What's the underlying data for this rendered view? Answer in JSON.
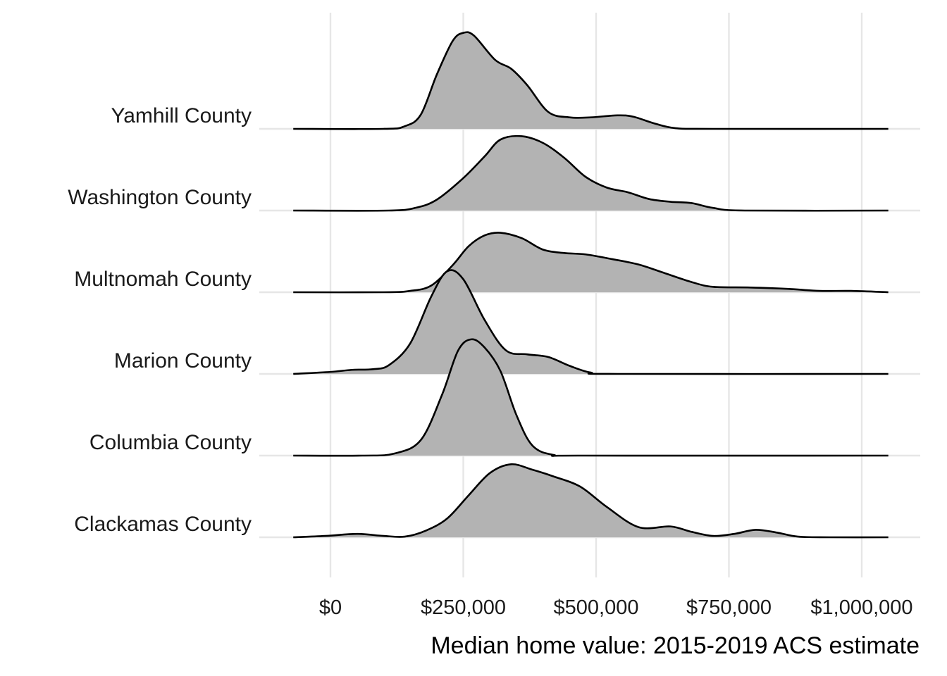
{
  "chart_data": {
    "type": "ridgeline",
    "title": "",
    "xlabel": "Median home value: 2015-2019 ACS estimate",
    "ylabel": "",
    "xlim": [
      -70000,
      1060000
    ],
    "x_ticks": [
      0,
      250000,
      500000,
      750000,
      1000000
    ],
    "x_tick_labels": [
      "$0",
      "$250,000",
      "$500,000",
      "$750,000",
      "$1,000,000"
    ],
    "grid": true,
    "fill_color": "#b3b3b3",
    "line_color": "#000000",
    "categories": [
      "Clackamas County",
      "Columbia County",
      "Marion County",
      "Multnomah County",
      "Washington County",
      "Yamhill County"
    ],
    "series": [
      {
        "name": "Clackamas County",
        "points": [
          [
            -70000,
            0
          ],
          [
            -10000,
            0.02
          ],
          [
            50000,
            0.05
          ],
          [
            100000,
            0.02
          ],
          [
            140000,
            0.01
          ],
          [
            180000,
            0.1
          ],
          [
            220000,
            0.28
          ],
          [
            260000,
            0.62
          ],
          [
            300000,
            0.95
          ],
          [
            340000,
            1.08
          ],
          [
            380000,
            1.0
          ],
          [
            420000,
            0.9
          ],
          [
            470000,
            0.75
          ],
          [
            520000,
            0.45
          ],
          [
            580000,
            0.15
          ],
          [
            640000,
            0.16
          ],
          [
            680000,
            0.08
          ],
          [
            720000,
            0.02
          ],
          [
            760000,
            0.05
          ],
          [
            800000,
            0.11
          ],
          [
            840000,
            0.07
          ],
          [
            880000,
            0.01
          ],
          [
            940000,
            0
          ],
          [
            1050000,
            0
          ]
        ]
      },
      {
        "name": "Columbia County",
        "points": [
          [
            -70000,
            0
          ],
          [
            60000,
            0
          ],
          [
            120000,
            0.03
          ],
          [
            170000,
            0.23
          ],
          [
            210000,
            0.9
          ],
          [
            240000,
            1.55
          ],
          [
            265000,
            1.72
          ],
          [
            290000,
            1.6
          ],
          [
            320000,
            1.25
          ],
          [
            350000,
            0.6
          ],
          [
            380000,
            0.15
          ],
          [
            420000,
            0.01
          ],
          [
            480000,
            0
          ],
          [
            1050000,
            0
          ]
        ]
      },
      {
        "name": "Marion County",
        "points": [
          [
            -70000,
            0
          ],
          [
            0,
            0.03
          ],
          [
            40000,
            0.06
          ],
          [
            80000,
            0.07
          ],
          [
            110000,
            0.13
          ],
          [
            150000,
            0.45
          ],
          [
            190000,
            1.15
          ],
          [
            220000,
            1.52
          ],
          [
            250000,
            1.4
          ],
          [
            290000,
            0.8
          ],
          [
            330000,
            0.35
          ],
          [
            370000,
            0.29
          ],
          [
            410000,
            0.25
          ],
          [
            450000,
            0.12
          ],
          [
            490000,
            0.02
          ],
          [
            540000,
            0
          ],
          [
            1050000,
            0
          ]
        ]
      },
      {
        "name": "Multnomah County",
        "points": [
          [
            -70000,
            0
          ],
          [
            100000,
            0
          ],
          [
            150000,
            0.02
          ],
          [
            190000,
            0.1
          ],
          [
            230000,
            0.4
          ],
          [
            260000,
            0.68
          ],
          [
            290000,
            0.84
          ],
          [
            320000,
            0.88
          ],
          [
            360000,
            0.8
          ],
          [
            400000,
            0.63
          ],
          [
            440000,
            0.58
          ],
          [
            480000,
            0.56
          ],
          [
            530000,
            0.49
          ],
          [
            580000,
            0.41
          ],
          [
            630000,
            0.28
          ],
          [
            680000,
            0.15
          ],
          [
            720000,
            0.08
          ],
          [
            790000,
            0.07
          ],
          [
            860000,
            0.05
          ],
          [
            920000,
            0.02
          ],
          [
            980000,
            0.02
          ],
          [
            1050000,
            0
          ]
        ]
      },
      {
        "name": "Washington County",
        "points": [
          [
            -70000,
            0
          ],
          [
            110000,
            0
          ],
          [
            160000,
            0.04
          ],
          [
            200000,
            0.16
          ],
          [
            250000,
            0.48
          ],
          [
            290000,
            0.8
          ],
          [
            320000,
            1.05
          ],
          [
            360000,
            1.1
          ],
          [
            400000,
            1.0
          ],
          [
            440000,
            0.78
          ],
          [
            480000,
            0.5
          ],
          [
            520000,
            0.34
          ],
          [
            560000,
            0.27
          ],
          [
            600000,
            0.17
          ],
          [
            640000,
            0.13
          ],
          [
            680000,
            0.11
          ],
          [
            720000,
            0.04
          ],
          [
            780000,
            0
          ],
          [
            1050000,
            0
          ]
        ]
      },
      {
        "name": "Yamhill County",
        "points": [
          [
            -70000,
            0
          ],
          [
            100000,
            0
          ],
          [
            140000,
            0.04
          ],
          [
            170000,
            0.21
          ],
          [
            200000,
            0.8
          ],
          [
            230000,
            1.3
          ],
          [
            250000,
            1.42
          ],
          [
            270000,
            1.38
          ],
          [
            310000,
            1.02
          ],
          [
            340000,
            0.89
          ],
          [
            370000,
            0.65
          ],
          [
            410000,
            0.25
          ],
          [
            450000,
            0.17
          ],
          [
            490000,
            0.17
          ],
          [
            540000,
            0.2
          ],
          [
            570000,
            0.18
          ],
          [
            610000,
            0.08
          ],
          [
            650000,
            0.01
          ],
          [
            720000,
            0
          ],
          [
            1050000,
            0
          ]
        ]
      }
    ]
  }
}
